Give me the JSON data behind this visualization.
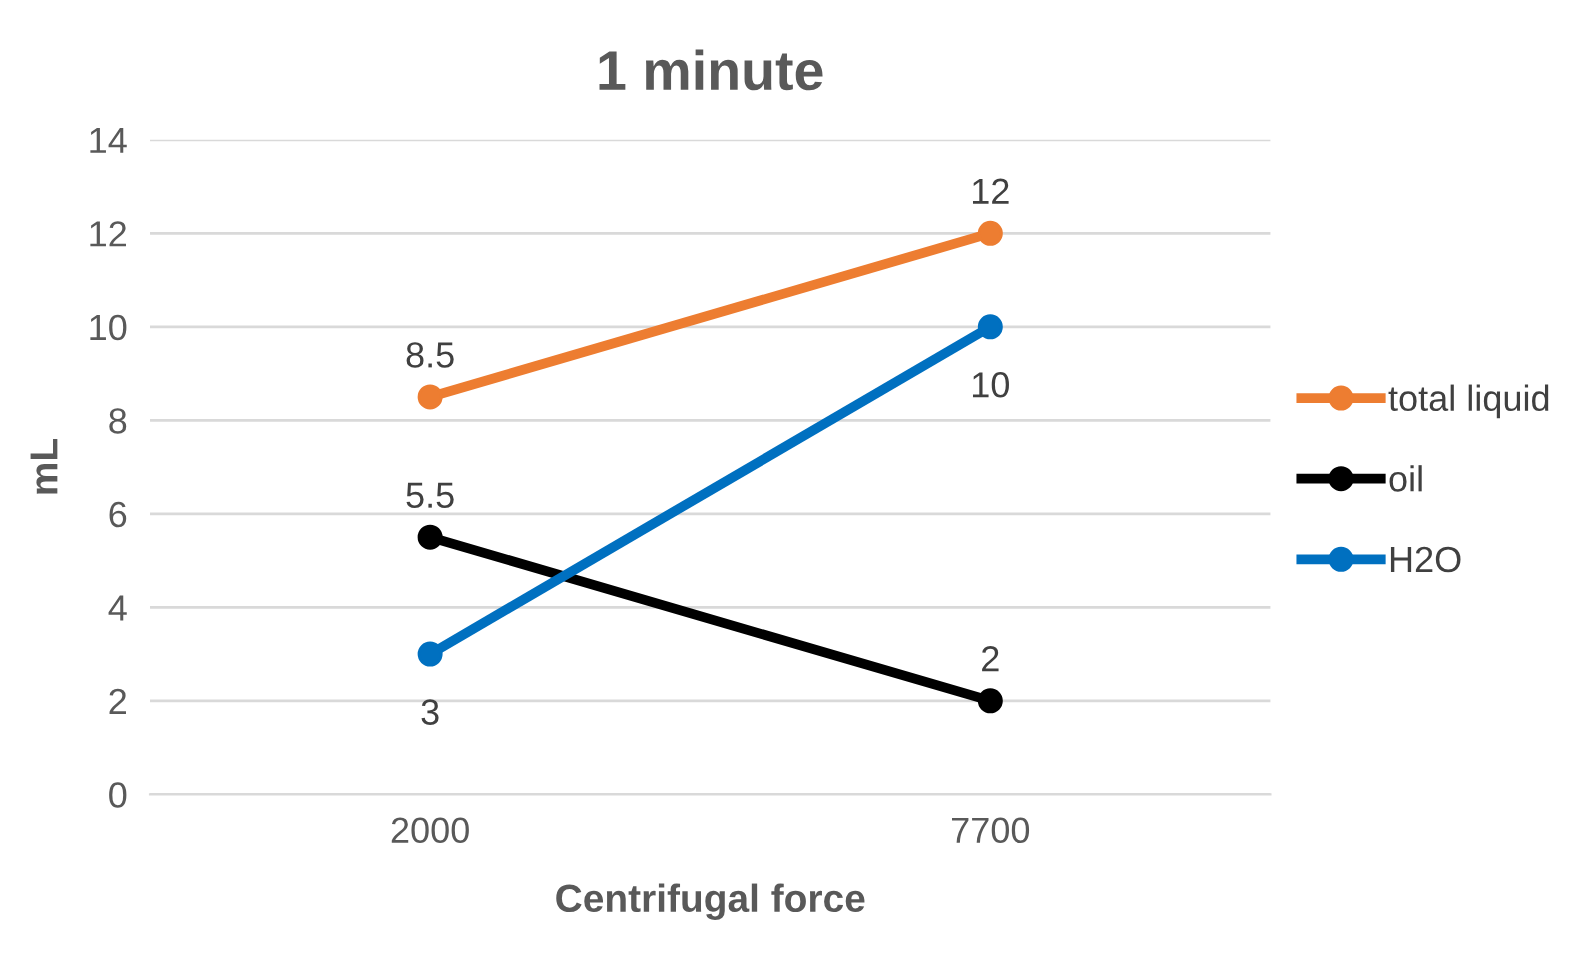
{
  "chart_data": {
    "type": "line",
    "title": "1 minute",
    "xlabel": "Centrifugal force",
    "ylabel": "mL",
    "categories": [
      "2000",
      "7700"
    ],
    "series": [
      {
        "name": "total liquid",
        "color": "#ed7d31",
        "values": [
          8.5,
          12
        ]
      },
      {
        "name": "oil",
        "color": "#000000",
        "values": [
          5.5,
          2
        ]
      },
      {
        "name": "H2O",
        "color": "#0070c0",
        "values": [
          3,
          10
        ]
      }
    ],
    "ylim": [
      0,
      14
    ],
    "yticks": [
      0,
      2,
      4,
      6,
      8,
      10,
      12,
      14
    ],
    "grid": "y",
    "legend": "right",
    "marker": "circle",
    "line_style": "solid",
    "data_labels": true
  }
}
